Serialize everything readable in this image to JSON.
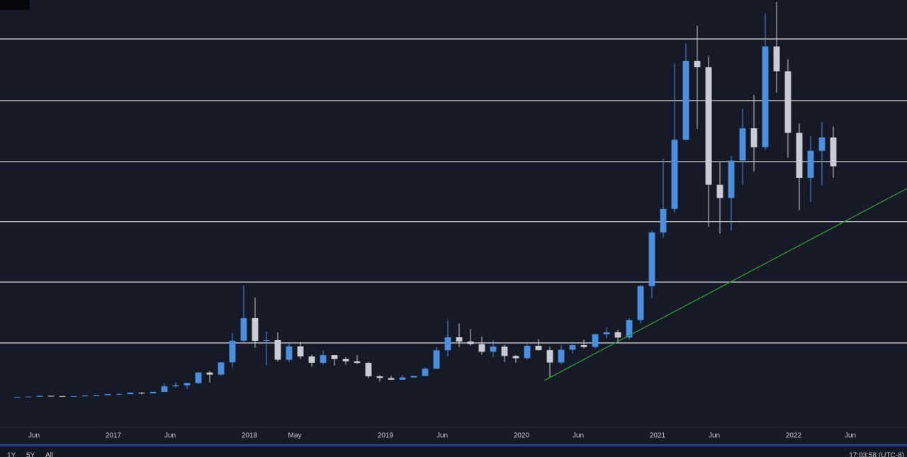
{
  "chart_data": {
    "type": "candlestick",
    "x": [
      "2016-04",
      "2016-05",
      "2016-06",
      "2016-07",
      "2016-08",
      "2016-09",
      "2016-10",
      "2016-11",
      "2016-12",
      "2017-01",
      "2017-02",
      "2017-03",
      "2017-04",
      "2017-05",
      "2017-06",
      "2017-07",
      "2017-08",
      "2017-09",
      "2017-10",
      "2017-11",
      "2017-12",
      "2018-01",
      "2018-02",
      "2018-03",
      "2018-04",
      "2018-05",
      "2018-06",
      "2018-07",
      "2018-08",
      "2018-09",
      "2018-10",
      "2018-11",
      "2018-12",
      "2019-01",
      "2019-02",
      "2019-03",
      "2019-04",
      "2019-05",
      "2019-06",
      "2019-07",
      "2019-08",
      "2019-09",
      "2019-10",
      "2019-11",
      "2019-12",
      "2020-01",
      "2020-02",
      "2020-03",
      "2020-04",
      "2020-05",
      "2020-06",
      "2020-07",
      "2020-08",
      "2020-09",
      "2020-10",
      "2020-11",
      "2020-12",
      "2021-01",
      "2021-02",
      "2021-03",
      "2021-04",
      "2021-05",
      "2021-06",
      "2021-07",
      "2021-08",
      "2021-09",
      "2021-10",
      "2021-11",
      "2021-12",
      "2022-01",
      "2022-02",
      "2022-03",
      "2022-04"
    ],
    "open": [
      416,
      448,
      531,
      673,
      624,
      575,
      609,
      700,
      745,
      963,
      970,
      1190,
      1080,
      1350,
      2300,
      2480,
      2870,
      4700,
      4340,
      6470,
      10230,
      14150,
      10200,
      10330,
      6930,
      9240,
      7490,
      6400,
      7730,
      7030,
      6630,
      6370,
      4040,
      3740,
      3460,
      3850,
      4100,
      5350,
      8570,
      10820,
      10080,
      9630,
      8300,
      9200,
      7560,
      7190,
      9350,
      8600,
      6440,
      8660,
      9460,
      9140,
      11350,
      11680,
      10780,
      13800,
      19700,
      29000,
      33100,
      45100,
      58800,
      57700,
      37300,
      35000,
      41500,
      47100,
      43800,
      61300,
      57000,
      46300,
      38500,
      43200,
      45500
    ],
    "high": [
      470,
      550,
      780,
      705,
      625,
      620,
      720,
      760,
      975,
      1150,
      1210,
      1290,
      1350,
      2760,
      3000,
      2920,
      4760,
      5000,
      6470,
      11500,
      19800,
      17700,
      11800,
      11700,
      9800,
      9990,
      7760,
      8500,
      7760,
      7400,
      7680,
      6540,
      4250,
      4100,
      4200,
      4100,
      5600,
      9100,
      13800,
      13200,
      12300,
      10900,
      10400,
      9500,
      7750,
      9600,
      10500,
      9200,
      9450,
      10070,
      10400,
      11450,
      12470,
      12100,
      14100,
      19900,
      29300,
      41900,
      58300,
      61800,
      64900,
      59600,
      41300,
      42300,
      50500,
      52900,
      67000,
      69000,
      59100,
      47900,
      45800,
      48200,
      47400
    ],
    "low": [
      415,
      440,
      530,
      600,
      480,
      590,
      605,
      680,
      745,
      750,
      920,
      890,
      1070,
      1350,
      2100,
      1840,
      2700,
      2970,
      4150,
      5500,
      10000,
      9000,
      6000,
      6600,
      6500,
      7060,
      5750,
      6100,
      5880,
      6100,
      6200,
      3650,
      3150,
      3400,
      3400,
      3830,
      4100,
      5350,
      7500,
      9100,
      9400,
      7800,
      7300,
      6500,
      6430,
      6900,
      8500,
      3850,
      6150,
      8100,
      8900,
      8900,
      10600,
      9900,
      10400,
      13200,
      17600,
      28100,
      32400,
      45000,
      47000,
      30000,
      28800,
      29300,
      37300,
      39600,
      43300,
      53300,
      42000,
      32900,
      34300,
      37200,
      38500
    ],
    "close": [
      448,
      531,
      673,
      624,
      575,
      609,
      700,
      745,
      963,
      970,
      1190,
      1080,
      1350,
      2300,
      2480,
      2870,
      4700,
      4340,
      6470,
      10230,
      14150,
      10200,
      10330,
      6930,
      9240,
      7490,
      6400,
      7730,
      7030,
      6630,
      6370,
      4040,
      3740,
      3460,
      3850,
      4100,
      5350,
      8570,
      10820,
      10080,
      9630,
      8300,
      9200,
      7560,
      7190,
      9350,
      8600,
      6440,
      8660,
      9460,
      9140,
      11350,
      11680,
      10780,
      13800,
      19700,
      29000,
      33100,
      45100,
      58800,
      57700,
      37300,
      35000,
      41500,
      47100,
      43800,
      61300,
      57000,
      46300,
      38500,
      43200,
      45500,
      40500
    ],
    "up_color": "#4a8fe0",
    "down_color": "#c9ccd4",
    "xlim": [
      "2016-03",
      "2022-11"
    ],
    "ylim": [
      -4430,
      69370
    ],
    "xticks": [
      {
        "value": "2016-06",
        "label": "Jun"
      },
      {
        "value": "2017-01",
        "label": "2017"
      },
      {
        "value": "2017-06",
        "label": "Jun"
      },
      {
        "value": "2018-01",
        "label": "2018"
      },
      {
        "value": "2018-05",
        "label": "May"
      },
      {
        "value": "2019-01",
        "label": "2019"
      },
      {
        "value": "2019-06",
        "label": "Jun"
      },
      {
        "value": "2020-01",
        "label": "2020"
      },
      {
        "value": "2020-06",
        "label": "Jun"
      },
      {
        "value": "2021-01",
        "label": "2021"
      },
      {
        "value": "2021-06",
        "label": "Jun"
      },
      {
        "value": "2022-01",
        "label": "2022"
      },
      {
        "value": "2022-06",
        "label": "Jun"
      }
    ],
    "levels": [
      9840,
      20400,
      30900,
      41300,
      51900,
      62600
    ],
    "level_color": "#d8d8d8",
    "trendline": {
      "x": [
        "2020-03",
        "2022-11"
      ],
      "values": [
        3320,
        36650
      ],
      "color": "#2f9a35"
    }
  },
  "toolbar": {
    "ranges": [
      "1Y",
      "5Y",
      "All"
    ],
    "clock": "17:03:58 (UTC-8)"
  }
}
